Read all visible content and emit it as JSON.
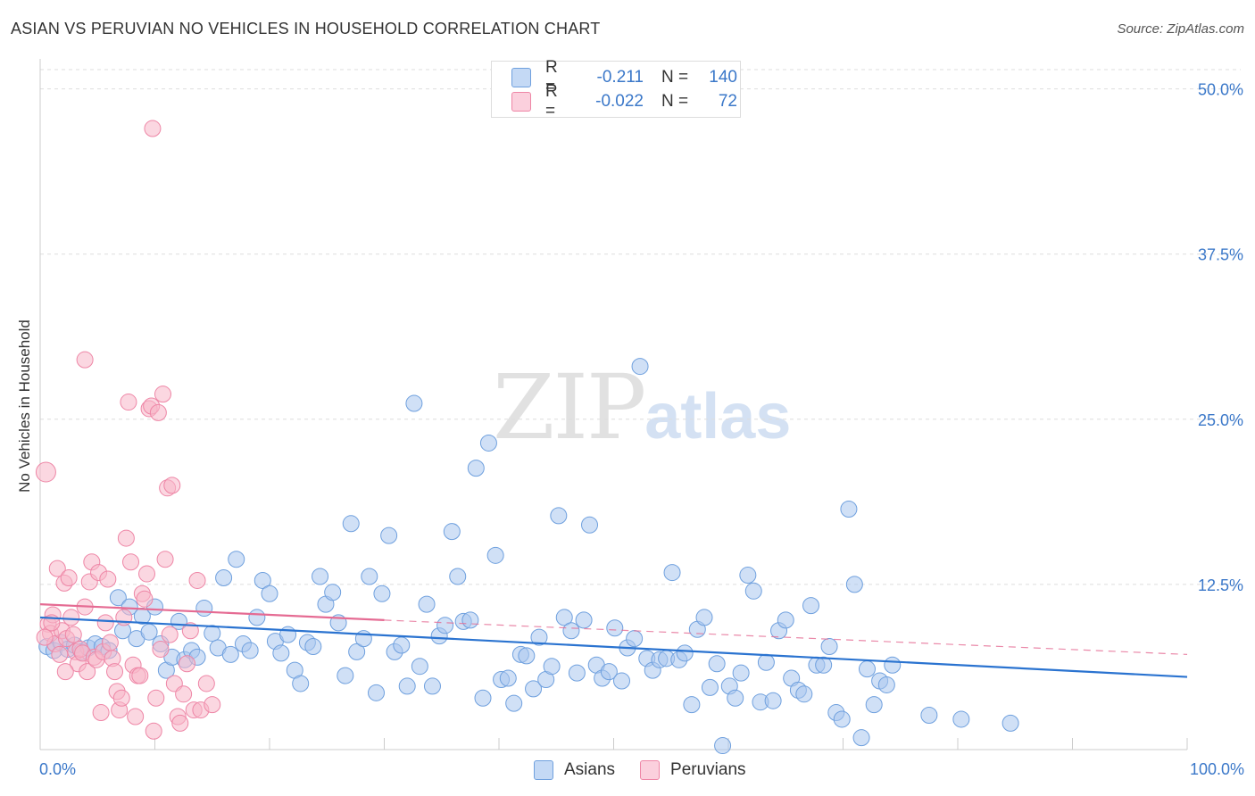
{
  "title": "ASIAN VS PERUVIAN NO VEHICLES IN HOUSEHOLD CORRELATION CHART",
  "source": "Source: ZipAtlas.com",
  "watermark": {
    "zip": "ZIP",
    "atlas": "atlas"
  },
  "legend": {
    "rows": [
      {
        "r_label": "R =",
        "r_value": "-0.211",
        "n_label": "N =",
        "n_value": "140",
        "color": "#a9c7ef"
      },
      {
        "r_label": "R =",
        "r_value": "-0.022",
        "n_label": "N =",
        "n_value": "72",
        "color": "#f7b6c9"
      }
    ]
  },
  "bottom_legend": {
    "asians": "Asians",
    "peruvians": "Peruvians"
  },
  "x_axis": {
    "min_label": "0.0%",
    "max_label": "100.0%"
  },
  "chart_data": {
    "type": "scatter",
    "title": "ASIAN VS PERUVIAN NO VEHICLES IN HOUSEHOLD CORRELATION CHART",
    "xlabel": "",
    "ylabel": "No Vehicles in Household",
    "xlim": [
      0,
      100
    ],
    "ylim": [
      0,
      52
    ],
    "y_ticks": [
      12.5,
      25.0,
      37.5,
      50.0
    ],
    "y_tick_labels": [
      "12.5%",
      "25.0%",
      "37.5%",
      "50.0%"
    ],
    "grid": true,
    "legend_position": "top-center",
    "series": [
      {
        "name": "Asians",
        "color": "#6fa0de",
        "fill": "#a9c7ef",
        "trend": {
          "x": [
            0,
            100
          ],
          "y": [
            10.0,
            5.5
          ],
          "style": "solid",
          "color": "#2a73d0"
        },
        "points": [
          [
            0.6,
            7.8
          ],
          [
            1.2,
            7.5
          ],
          [
            1.8,
            8.1
          ],
          [
            2.4,
            7.6
          ],
          [
            3.0,
            7.9
          ],
          [
            3.6,
            7.4
          ],
          [
            4.2,
            7.7
          ],
          [
            4.8,
            8.0
          ],
          [
            5.4,
            7.8
          ],
          [
            6.0,
            7.5
          ],
          [
            6.8,
            11.5
          ],
          [
            7.2,
            9.0
          ],
          [
            7.8,
            10.8
          ],
          [
            8.4,
            8.4
          ],
          [
            8.9,
            10.1
          ],
          [
            9.5,
            8.9
          ],
          [
            10.0,
            10.8
          ],
          [
            10.5,
            8.0
          ],
          [
            11.0,
            6.0
          ],
          [
            11.5,
            7.0
          ],
          [
            12.1,
            9.7
          ],
          [
            12.6,
            6.8
          ],
          [
            13.2,
            7.5
          ],
          [
            13.7,
            7.0
          ],
          [
            14.3,
            10.7
          ],
          [
            15.0,
            8.8
          ],
          [
            15.5,
            7.7
          ],
          [
            16.0,
            13.0
          ],
          [
            16.6,
            7.2
          ],
          [
            17.1,
            14.4
          ],
          [
            17.7,
            8.0
          ],
          [
            18.3,
            7.5
          ],
          [
            18.9,
            10.0
          ],
          [
            19.4,
            12.8
          ],
          [
            20.0,
            11.8
          ],
          [
            20.5,
            8.2
          ],
          [
            21.0,
            7.3
          ],
          [
            21.6,
            8.7
          ],
          [
            22.2,
            6.0
          ],
          [
            22.7,
            5.0
          ],
          [
            23.3,
            8.1
          ],
          [
            23.8,
            7.8
          ],
          [
            24.4,
            13.1
          ],
          [
            24.9,
            11.0
          ],
          [
            25.5,
            11.9
          ],
          [
            26.0,
            9.6
          ],
          [
            26.6,
            5.6
          ],
          [
            27.1,
            17.1
          ],
          [
            27.6,
            7.4
          ],
          [
            28.2,
            8.4
          ],
          [
            28.7,
            13.1
          ],
          [
            29.3,
            4.3
          ],
          [
            29.8,
            11.8
          ],
          [
            30.4,
            16.2
          ],
          [
            30.9,
            7.4
          ],
          [
            31.5,
            7.9
          ],
          [
            32.0,
            4.8
          ],
          [
            32.6,
            26.2
          ],
          [
            33.1,
            6.3
          ],
          [
            33.7,
            11.0
          ],
          [
            34.2,
            4.8
          ],
          [
            34.8,
            8.6
          ],
          [
            35.3,
            9.4
          ],
          [
            35.9,
            16.5
          ],
          [
            36.4,
            13.1
          ],
          [
            36.9,
            9.7
          ],
          [
            37.5,
            9.8
          ],
          [
            38.0,
            21.3
          ],
          [
            38.6,
            3.9
          ],
          [
            39.1,
            23.2
          ],
          [
            39.7,
            14.7
          ],
          [
            40.2,
            5.3
          ],
          [
            40.8,
            5.4
          ],
          [
            41.3,
            3.5
          ],
          [
            41.9,
            7.2
          ],
          [
            42.4,
            7.1
          ],
          [
            43.0,
            4.6
          ],
          [
            43.5,
            8.5
          ],
          [
            44.1,
            5.3
          ],
          [
            44.6,
            6.3
          ],
          [
            45.2,
            17.7
          ],
          [
            45.7,
            10.0
          ],
          [
            46.3,
            9.0
          ],
          [
            46.8,
            5.8
          ],
          [
            47.4,
            9.8
          ],
          [
            47.9,
            17.0
          ],
          [
            48.5,
            6.4
          ],
          [
            49.0,
            5.4
          ],
          [
            49.6,
            5.9
          ],
          [
            50.1,
            9.2
          ],
          [
            50.7,
            5.2
          ],
          [
            51.2,
            7.7
          ],
          [
            51.8,
            8.4
          ],
          [
            52.3,
            29.0
          ],
          [
            52.9,
            6.9
          ],
          [
            53.4,
            6.0
          ],
          [
            54.0,
            6.8
          ],
          [
            54.6,
            6.9
          ],
          [
            55.1,
            13.4
          ],
          [
            55.7,
            6.8
          ],
          [
            56.2,
            7.3
          ],
          [
            56.8,
            3.4
          ],
          [
            57.3,
            9.1
          ],
          [
            57.9,
            10.0
          ],
          [
            58.4,
            4.7
          ],
          [
            59.0,
            6.5
          ],
          [
            59.5,
            0.3
          ],
          [
            60.1,
            4.8
          ],
          [
            60.6,
            3.9
          ],
          [
            61.1,
            5.8
          ],
          [
            61.7,
            13.2
          ],
          [
            62.2,
            12.0
          ],
          [
            62.8,
            3.6
          ],
          [
            63.3,
            6.6
          ],
          [
            63.9,
            3.7
          ],
          [
            64.4,
            9.0
          ],
          [
            65.0,
            9.8
          ],
          [
            65.5,
            5.4
          ],
          [
            66.1,
            4.5
          ],
          [
            66.6,
            4.2
          ],
          [
            67.2,
            10.9
          ],
          [
            67.7,
            6.4
          ],
          [
            68.3,
            6.4
          ],
          [
            68.8,
            7.8
          ],
          [
            69.4,
            2.8
          ],
          [
            69.9,
            2.3
          ],
          [
            70.5,
            18.2
          ],
          [
            71.0,
            12.5
          ],
          [
            71.6,
            0.9
          ],
          [
            72.1,
            6.1
          ],
          [
            72.7,
            3.4
          ],
          [
            73.2,
            5.2
          ],
          [
            73.8,
            4.9
          ],
          [
            74.3,
            6.4
          ],
          [
            77.5,
            2.6
          ],
          [
            80.3,
            2.3
          ],
          [
            84.6,
            2.0
          ]
        ]
      },
      {
        "name": "Peruvians",
        "color": "#ee86a6",
        "fill": "#f7b6c9",
        "trend": {
          "x": [
            0,
            30
          ],
          "y": [
            11.0,
            9.8
          ],
          "style": "solid",
          "color": "#e56b93",
          "extended": {
            "x": [
              30,
              100
            ],
            "y": [
              9.8,
              7.2
            ],
            "style": "dashed"
          }
        },
        "points": [
          [
            0.5,
            21.0
          ],
          [
            0.7,
            9.5
          ],
          [
            0.9,
            8.8
          ],
          [
            1.1,
            10.2
          ],
          [
            1.3,
            8.0
          ],
          [
            1.5,
            13.7
          ],
          [
            1.7,
            7.2
          ],
          [
            1.9,
            9.0
          ],
          [
            2.1,
            12.6
          ],
          [
            2.3,
            8.4
          ],
          [
            2.5,
            13.0
          ],
          [
            2.7,
            10.0
          ],
          [
            2.9,
            8.7
          ],
          [
            3.1,
            7.4
          ],
          [
            3.3,
            6.5
          ],
          [
            3.5,
            7.6
          ],
          [
            3.7,
            7.3
          ],
          [
            3.9,
            10.8
          ],
          [
            4.1,
            5.9
          ],
          [
            4.3,
            12.7
          ],
          [
            4.5,
            14.2
          ],
          [
            4.7,
            7.0
          ],
          [
            4.9,
            6.8
          ],
          [
            5.1,
            13.4
          ],
          [
            5.3,
            2.8
          ],
          [
            5.5,
            7.4
          ],
          [
            5.7,
            9.6
          ],
          [
            5.9,
            12.9
          ],
          [
            6.1,
            8.1
          ],
          [
            6.3,
            6.9
          ],
          [
            6.5,
            5.9
          ],
          [
            6.7,
            4.4
          ],
          [
            6.9,
            3.0
          ],
          [
            7.1,
            3.9
          ],
          [
            7.3,
            10.0
          ],
          [
            7.5,
            16.0
          ],
          [
            7.7,
            26.3
          ],
          [
            7.9,
            14.2
          ],
          [
            8.1,
            6.4
          ],
          [
            8.3,
            2.5
          ],
          [
            8.5,
            5.6
          ],
          [
            8.7,
            5.6
          ],
          [
            8.9,
            11.8
          ],
          [
            9.1,
            11.4
          ],
          [
            9.3,
            13.3
          ],
          [
            9.5,
            25.8
          ],
          [
            9.7,
            26.0
          ],
          [
            9.9,
            1.4
          ],
          [
            10.1,
            3.9
          ],
          [
            10.3,
            25.5
          ],
          [
            10.5,
            7.6
          ],
          [
            10.7,
            26.9
          ],
          [
            10.9,
            14.4
          ],
          [
            11.1,
            19.8
          ],
          [
            11.3,
            8.7
          ],
          [
            11.5,
            20.0
          ],
          [
            11.7,
            5.0
          ],
          [
            12.0,
            2.5
          ],
          [
            12.2,
            2.0
          ],
          [
            12.5,
            4.2
          ],
          [
            12.8,
            6.5
          ],
          [
            13.1,
            9.0
          ],
          [
            13.4,
            3.0
          ],
          [
            13.7,
            12.8
          ],
          [
            14.0,
            3.0
          ],
          [
            14.5,
            5.0
          ],
          [
            15.0,
            3.4
          ],
          [
            3.9,
            29.5
          ],
          [
            9.8,
            47.0
          ],
          [
            2.2,
            5.9
          ],
          [
            1.0,
            9.6
          ],
          [
            0.4,
            8.5
          ]
        ]
      }
    ]
  }
}
